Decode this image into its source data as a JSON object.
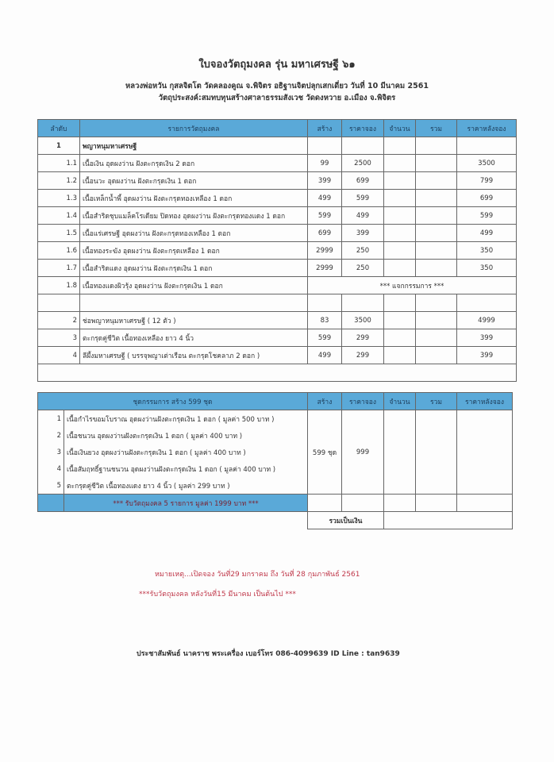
{
  "title": "ใบจองวัตถุมงคล รุ่น มหาเศรษฐี ๖๑",
  "subtitle1": "หลวงพ่อหวัน กุสลจิตโต วัดคลองคูณ จ.พิจิตร อธิฐานจิตปลุกเสกเดี่ยว วันที่ 10 มีนาคม 2561",
  "subtitle2": "วัตถุประสงค์:สมทบทุนสร้างศาลาธรรมสังเวช วัดดงหวาย อ.เมือง จ.พิจิตร",
  "table1": {
    "headers": [
      "ลำดับ",
      "รายการวัตถุมงคล",
      "สร้าง",
      "ราคาจอง",
      "จำนวน",
      "รวม",
      "ราคาหลังจอง"
    ],
    "rows": [
      {
        "no": "1",
        "item": "พญาหนุมหาเศรษฐี",
        "created": "",
        "price": "",
        "after": "",
        "bold": true
      },
      {
        "no": "1.1",
        "item": "เนื้อเงิน อุดผงว่าน ฝังตะกรุดเงิน 2 ดอก",
        "created": "99",
        "price": "2500",
        "after": "3500"
      },
      {
        "no": "1.2",
        "item": "เนื้อนวะ อุดผงว่าน ฝังตะกรุดเงิน 1 ดอก",
        "created": "399",
        "price": "699",
        "after": "799"
      },
      {
        "no": "1.3",
        "item": "เนื้อเหล็กน้ำพี้ อุดผงว่าน ฝังตะกรุดทองเหลือง 1 ดอก",
        "created": "499",
        "price": "599",
        "after": "699"
      },
      {
        "no": "1.4",
        "item": "เนื้อสำริดชุบแมล็คโรเดียม ปิดทอง อุดผงว่าน ฝังตะกรุดทองแดง 1 ดอก",
        "created": "599",
        "price": "499",
        "after": "599"
      },
      {
        "no": "1.5",
        "item": "เนื้อแร่เศรษฐี อุดผงว่าน ฝังตะกรุดทองเหลือง 1 ดอก",
        "created": "699",
        "price": "399",
        "after": "499"
      },
      {
        "no": "1.6",
        "item": "เนื้อทองระฆัง อุดผงว่าน ฝังตะกรุดเหลือง 1 ดอก",
        "created": "2999",
        "price": "250",
        "after": "350"
      },
      {
        "no": "1.7",
        "item": "เนื้อสำริดแดง อุดผงว่าน ฝังตะกรุดเงิน 1 ดอก",
        "created": "2999",
        "price": "250",
        "after": "350"
      },
      {
        "no": "1.8",
        "item": "เนื้อทองแดงผิวรุ้ง อุดผงว่าน ฝังตะกรุดเงิน 1 ดอก",
        "merged": "*** แจกกรรมการ ***"
      },
      {
        "no": "",
        "item": "",
        "created": "",
        "price": "",
        "after": ""
      },
      {
        "no": "2",
        "item": "ช่อพญาหนุมหาเศรษฐี ( 12 ตัว )",
        "created": "83",
        "price": "3500",
        "after": "4999"
      },
      {
        "no": "3",
        "item": "ตะกรุดคู่ชีวิต เนื้อทองเหลือง ยาว 4 นิ้ว",
        "created": "599",
        "price": "299",
        "after": "399"
      },
      {
        "no": "4",
        "item": "ลีผึ้งมหาเศรษฐี ( บรรจุพญาเต่าเรือน ตะกรุดโชคลาภ 2 ดอก )",
        "created": "499",
        "price": "299",
        "after": "399"
      }
    ]
  },
  "table2": {
    "header": "ชุดกรรมการ สร้าง 599 ชุด",
    "headers": [
      "สร้าง",
      "ราคาจอง",
      "จำนวน",
      "รวม",
      "ราคาหลังจอง"
    ],
    "items": [
      {
        "no": "1",
        "item": "เนื้อกำไรขอมโบราณ อุดผงว่านฝังตะกรุดเงิน 1 ดอก ( มูลค่า 500 บาท )"
      },
      {
        "no": "2",
        "item": "เนื้อชนวน อุดผงว่านฝังตะกรุดเงิน 1 ดอก ( มูลค่า 400 บาท )"
      },
      {
        "no": "3",
        "item": "เนื้อเงินยวง อุดผงว่านฝังตะกรุดเงิน 1 ดอก ( มูลค่า 400 บาท )"
      },
      {
        "no": "4",
        "item": "เนื้อสัมฤทธิ์ฐานชนวน อุดผงว่านฝังตะกรุดเงิน 1 ดอก ( มูลค่า 400 บาท )"
      },
      {
        "no": "5",
        "item": "ตะกรุดคู่ชีวิต เนื้อทองแดง ยาว 4 นิ้ว ( มูลค่า 299 บาท )"
      }
    ],
    "created": "599 ชุด",
    "price": "999",
    "footer": "*** รับวัตถุมงคล 5 รายการ มูลค่า 1999 บาท ***",
    "total_label": "รวมเป็นเงิน"
  },
  "note1": "หมายเหตุ...เปิดจอง วันที่29 มกราคม ถึง วันที่ 28 กุมภาพันธ์ 2561",
  "note2": "***รับวัตถุมงคล หลังวันที่15 มีนาคม เป็นต้นไป ***",
  "contact": "ประชาสัมพันธ์ นาคราช พระเครื่อง เบอร์โทร 086-4099639  ID Line : tan9639",
  "colors": {
    "header_blue": "#5aa9d8",
    "note_red": "#c0394b"
  }
}
